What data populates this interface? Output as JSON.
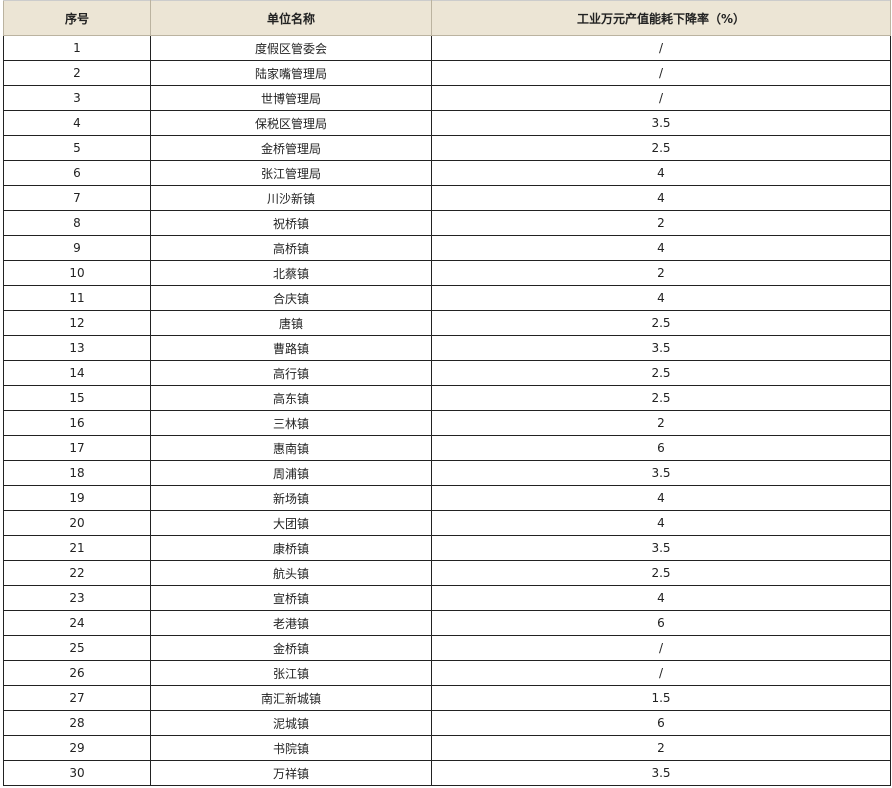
{
  "table": {
    "headers": [
      "序号",
      "单位名称",
      "工业万元产值能耗下降率（%）"
    ],
    "rows": [
      [
        "1",
        "度假区管委会",
        "/"
      ],
      [
        "2",
        "陆家嘴管理局",
        "/"
      ],
      [
        "3",
        "世博管理局",
        "/"
      ],
      [
        "4",
        "保税区管理局",
        "3.5"
      ],
      [
        "5",
        "金桥管理局",
        "2.5"
      ],
      [
        "6",
        "张江管理局",
        "4"
      ],
      [
        "7",
        "川沙新镇",
        "4"
      ],
      [
        "8",
        "祝桥镇",
        "2"
      ],
      [
        "9",
        "高桥镇",
        "4"
      ],
      [
        "10",
        "北蔡镇",
        "2"
      ],
      [
        "11",
        "合庆镇",
        "4"
      ],
      [
        "12",
        "唐镇",
        "2.5"
      ],
      [
        "13",
        "曹路镇",
        "3.5"
      ],
      [
        "14",
        "高行镇",
        "2.5"
      ],
      [
        "15",
        "高东镇",
        "2.5"
      ],
      [
        "16",
        "三林镇",
        "2"
      ],
      [
        "17",
        "惠南镇",
        "6"
      ],
      [
        "18",
        "周浦镇",
        "3.5"
      ],
      [
        "19",
        "新场镇",
        "4"
      ],
      [
        "20",
        "大团镇",
        "4"
      ],
      [
        "21",
        "康桥镇",
        "3.5"
      ],
      [
        "22",
        "航头镇",
        "2.5"
      ],
      [
        "23",
        "宣桥镇",
        "4"
      ],
      [
        "24",
        "老港镇",
        "6"
      ],
      [
        "25",
        "金桥镇",
        "/"
      ],
      [
        "26",
        "张江镇",
        "/"
      ],
      [
        "27",
        "南汇新城镇",
        "1.5"
      ],
      [
        "28",
        "泥城镇",
        "6"
      ],
      [
        "29",
        "书院镇",
        "2"
      ],
      [
        "30",
        "万祥镇",
        "3.5"
      ]
    ]
  },
  "colors": {
    "header_bg": "#ece5d5",
    "border": "#222222"
  }
}
